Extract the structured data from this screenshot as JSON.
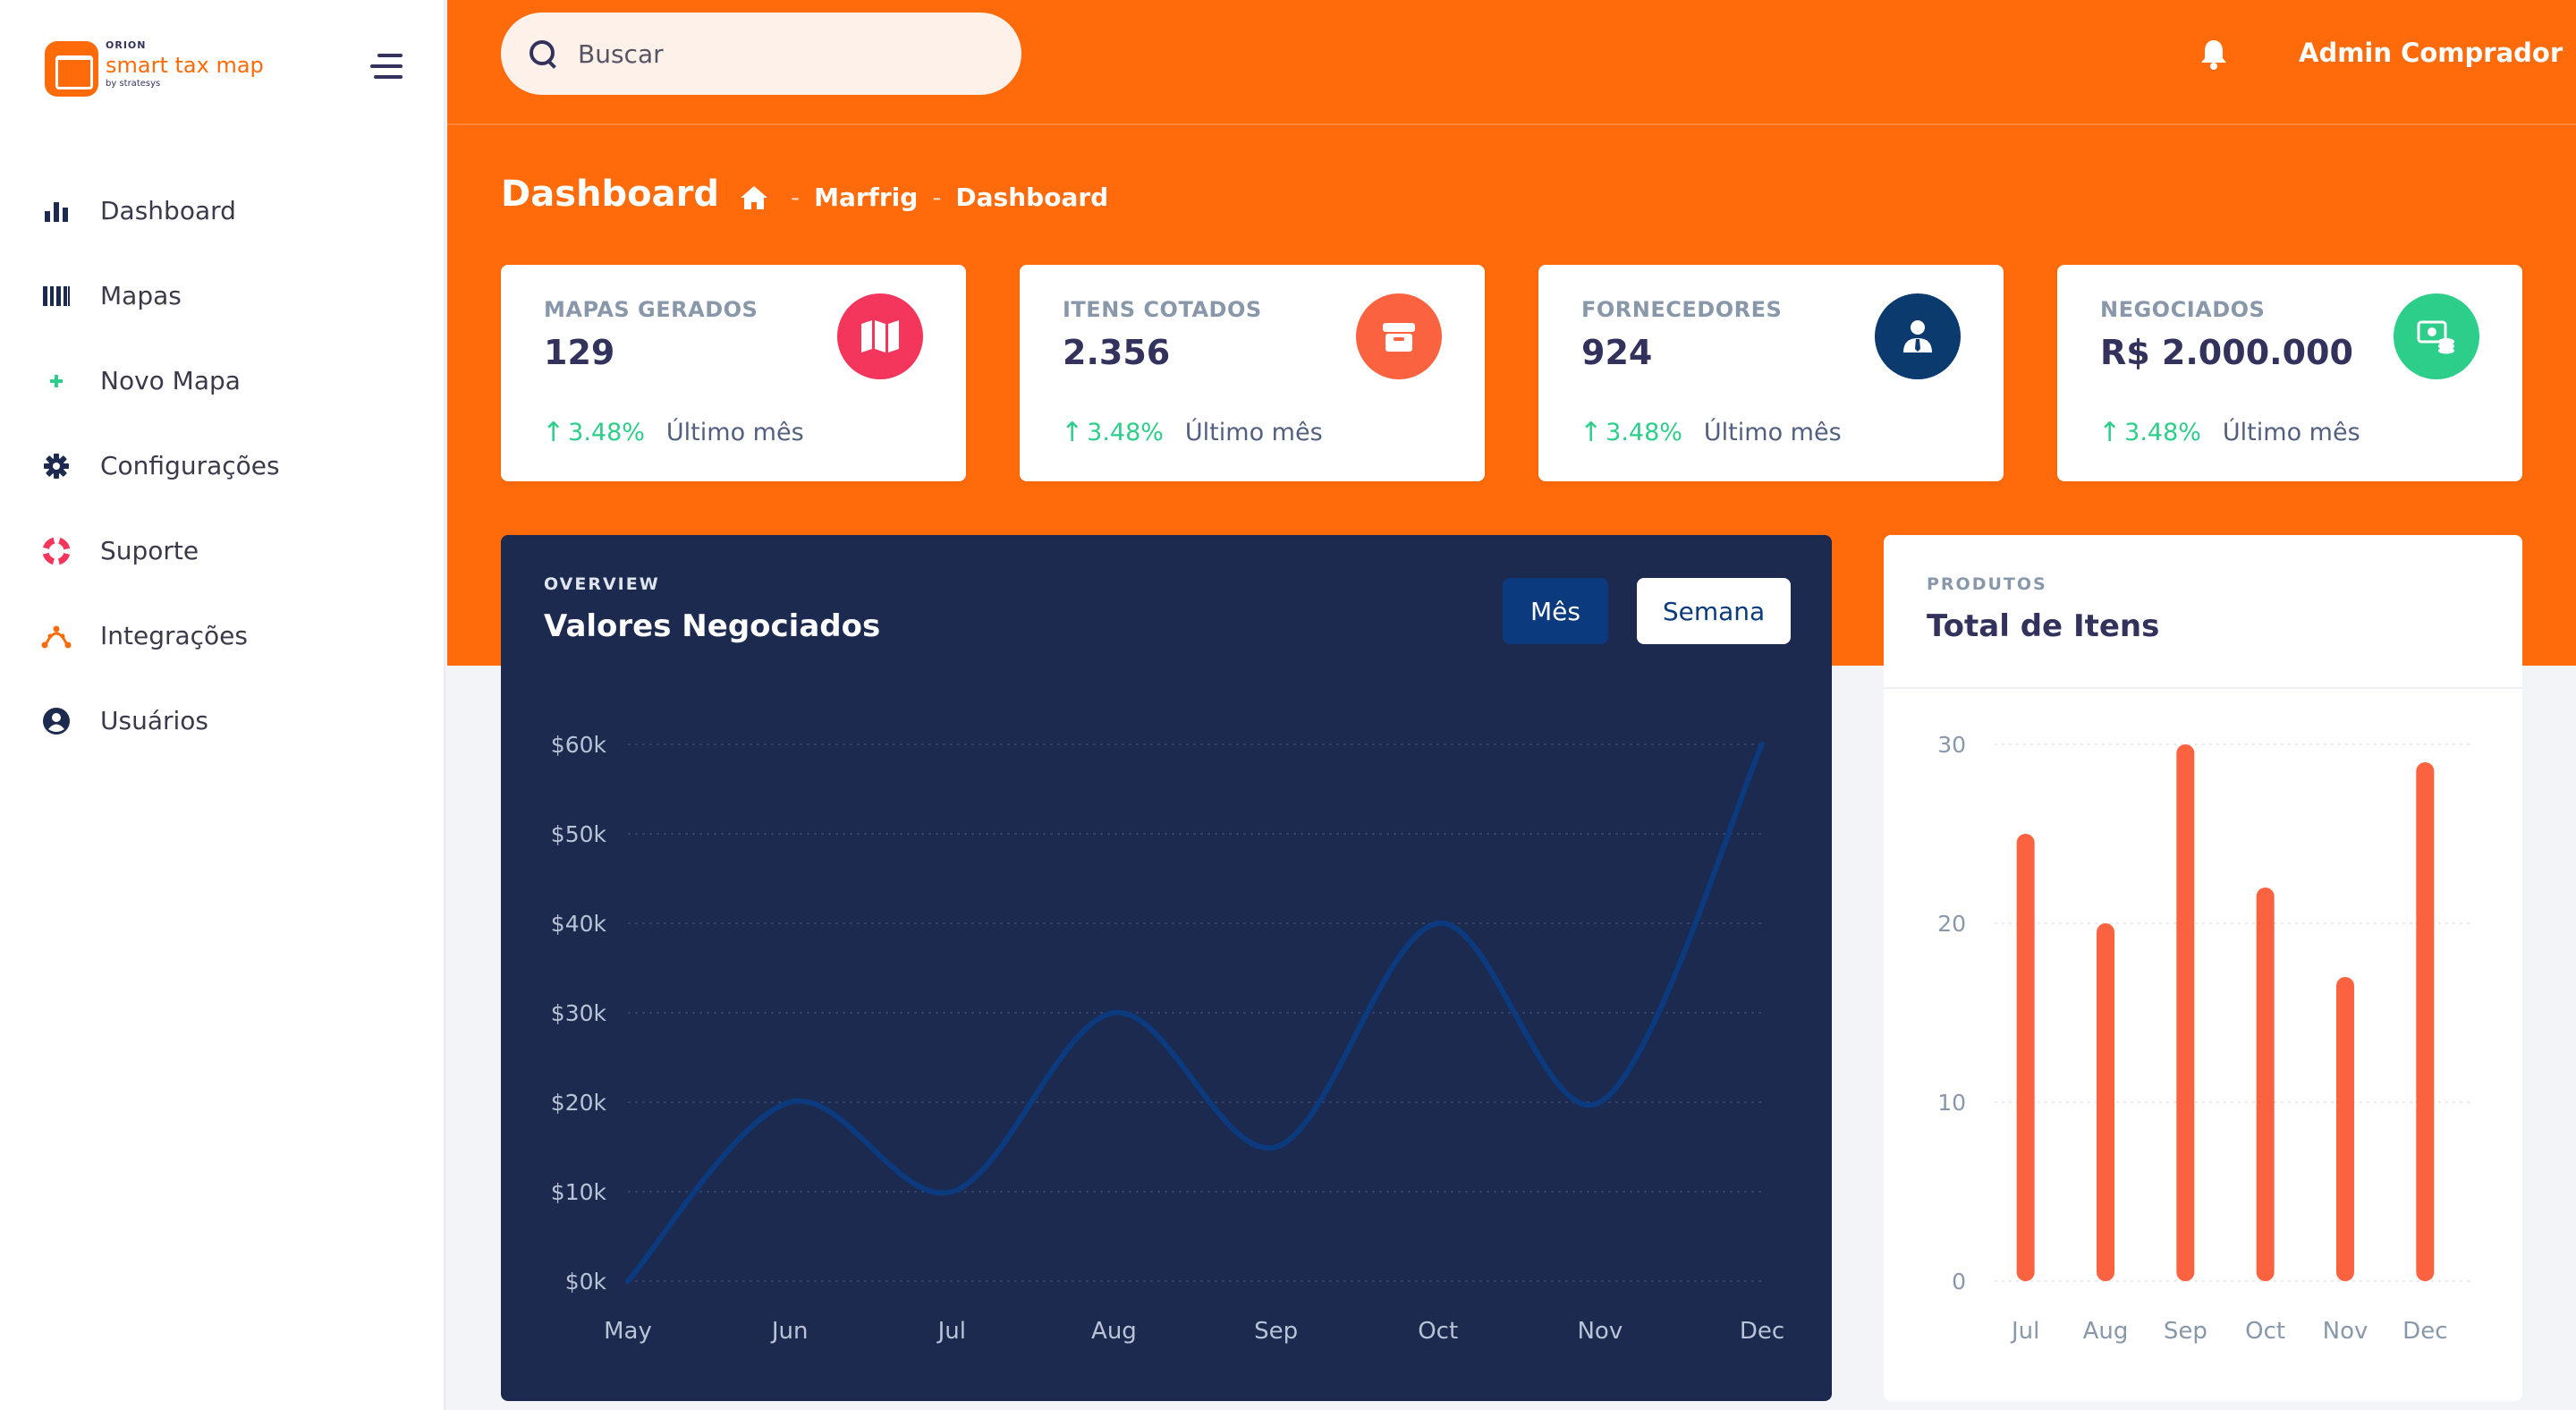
{
  "brand": {
    "small": "ORION",
    "name": "smart tax map",
    "by": "by stratesys"
  },
  "sidebar": {
    "items": [
      {
        "label": "Dashboard",
        "icon": "bar-chart-icon",
        "color": "#1c2a4f"
      },
      {
        "label": "Mapas",
        "icon": "map-icon",
        "color": "#1c2a4f"
      },
      {
        "label": "Novo Mapa",
        "icon": "plus-icon",
        "color": "#2dce89"
      },
      {
        "label": "Configurações",
        "icon": "gear-icon",
        "color": "#1c2a4f"
      },
      {
        "label": "Suporte",
        "icon": "lifebuoy-icon",
        "color": "#f5365c"
      },
      {
        "label": "Integrações",
        "icon": "integration-icon",
        "color": "#ff6b0a"
      },
      {
        "label": "Usuários",
        "icon": "user-circle-icon",
        "color": "#1c2a4f"
      }
    ]
  },
  "header": {
    "search_placeholder": "Buscar",
    "user_name": "Admin Comprador"
  },
  "page": {
    "title": "Dashboard",
    "breadcrumb": [
      "Marfrig",
      "Dashboard"
    ]
  },
  "stats": [
    {
      "title": "MAPAS GERADOS",
      "value": "129",
      "change": "3.48%",
      "since": "Último mês",
      "icon": "map-icon",
      "icon_color": "#f5365c"
    },
    {
      "title": "ITENS COTADOS",
      "value": "2.356",
      "change": "3.48%",
      "since": "Último mês",
      "icon": "box-icon",
      "icon_color": "#fb6340"
    },
    {
      "title": "FORNECEDORES",
      "value": "924",
      "change": "3.48%",
      "since": "Último mês",
      "icon": "user-tie-icon",
      "icon_color": "#0b3a6e"
    },
    {
      "title": "NEGOCIADOS",
      "value": "R$ 2.000.000",
      "change": "3.48%",
      "since": "Último mês",
      "icon": "money-icon",
      "icon_color": "#2dce89"
    }
  ],
  "overview": {
    "kicker": "OVERVIEW",
    "title": "Valores Negociados",
    "btn_month": "Mês",
    "btn_week": "Semana"
  },
  "produtos": {
    "kicker": "PRODUTOS",
    "title": "Total de Itens"
  },
  "chart_data": [
    {
      "type": "line",
      "title": "Valores Negociados",
      "categories": [
        "May",
        "Jun",
        "Jul",
        "Aug",
        "Sep",
        "Oct",
        "Nov",
        "Dec"
      ],
      "series": [
        {
          "values": [
            0,
            20,
            10,
            30,
            15,
            40,
            20,
            60
          ]
        }
      ],
      "y_ticks": [
        "$0k",
        "$10k",
        "$20k",
        "$30k",
        "$40k",
        "$50k",
        "$60k"
      ],
      "ylim": [
        0,
        60
      ],
      "grid": true,
      "line_color": "#0b3a7e"
    },
    {
      "type": "bar",
      "title": "Total de Itens",
      "categories": [
        "Jul",
        "Aug",
        "Sep",
        "Oct",
        "Nov",
        "Dec"
      ],
      "values": [
        25,
        20,
        30,
        22,
        17,
        29
      ],
      "y_ticks": [
        "0",
        "10",
        "20",
        "30"
      ],
      "ylim": [
        0,
        30
      ],
      "grid": true,
      "bar_color": "#fb6340"
    }
  ]
}
